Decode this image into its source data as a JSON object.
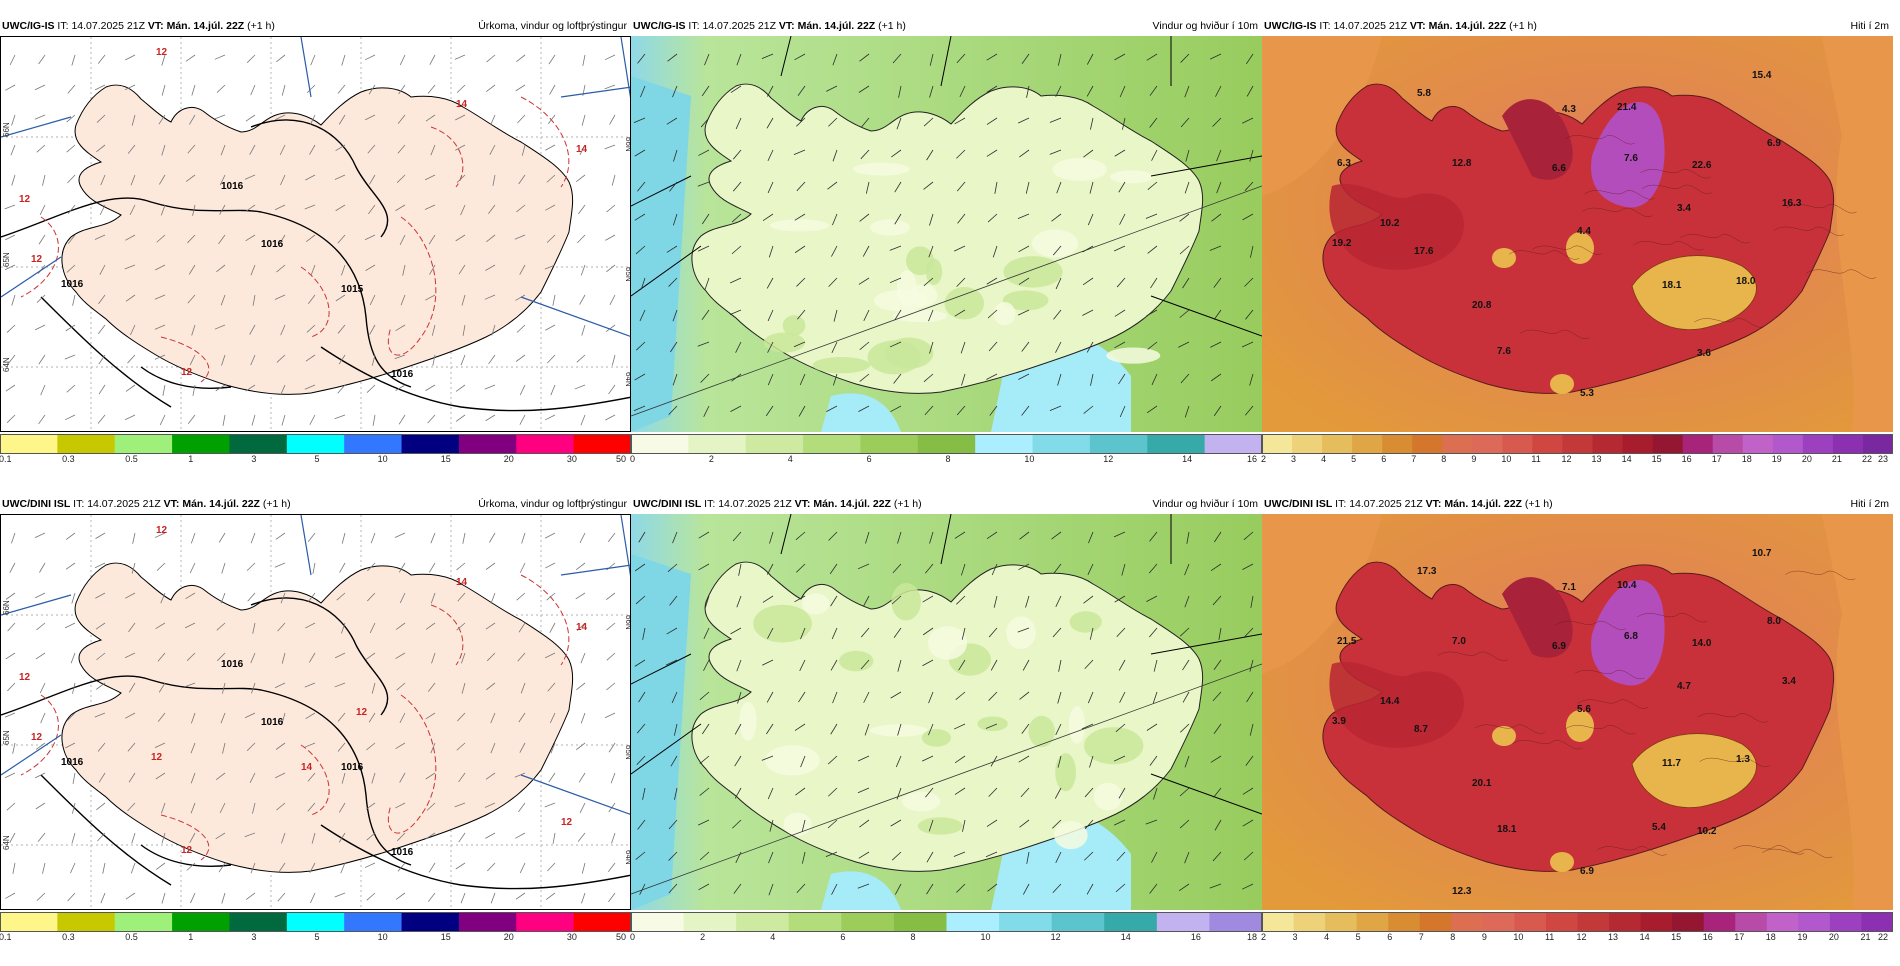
{
  "panels": {
    "igs_precip": {
      "model": "UWC/IG-IS",
      "it_label": "IT:",
      "it": "14.07.2025 21Z",
      "vt_label": "VT:",
      "vt": "Mán. 14.júl. 22Z",
      "lead": "(+1 h)",
      "title": "Úrkoma, vindur og loftþrýstingur",
      "colorbar": {
        "colors": [
          "#fff68a",
          "#c8c800",
          "#9ef07a",
          "#00a000",
          "#006a3e",
          "#00ffff",
          "#3377ff",
          "#000080",
          "#800080",
          "#ff0080",
          "#ff0000"
        ],
        "ticks": [
          "0.1",
          "0.3",
          "0.5",
          "1",
          "3",
          "5",
          "10",
          "15",
          "20",
          "30",
          "50"
        ]
      },
      "isobar_labels": [
        "1016",
        "1016",
        "1015",
        "1016",
        "1016"
      ],
      "precip_labels": [
        "12",
        "14",
        "14",
        "12",
        "12",
        "12"
      ],
      "lat_labels": [
        "66N",
        "65N",
        "64N"
      ]
    },
    "igs_wind": {
      "model": "UWC/IG-IS",
      "it_label": "IT:",
      "it": "14.07.2025 21Z",
      "vt_label": "VT:",
      "vt": "Mán. 14.júl. 22Z",
      "lead": "(+1 h)",
      "title": "Vindur og hviður í 10m",
      "colorbar": {
        "colors": [
          "#f7fbe6",
          "#e4f4c4",
          "#cdeaa0",
          "#b3dc7a",
          "#9ccc5a",
          "#86bd45",
          "#aaeeff",
          "#82dbe8",
          "#5cc4cc",
          "#35aaa8",
          "#c3b2f0"
        ],
        "ticks": [
          "0",
          "2",
          "4",
          "6",
          "8",
          "10",
          "12",
          "14",
          "16"
        ]
      }
    },
    "igs_temp": {
      "model": "UWC/IG-IS",
      "it_label": "IT:",
      "it": "14.07.2025 21Z",
      "vt_label": "VT:",
      "vt": "Mán. 14.júl. 22Z",
      "lead": "(+1 h)",
      "title": "Hiti í 2m",
      "colorbar": {
        "colors": [
          "#f5e79a",
          "#eed27a",
          "#e6bd5c",
          "#e0a544",
          "#d88d33",
          "#d4772c",
          "#dc6e52",
          "#dd6a58",
          "#d85a4e",
          "#cf4740",
          "#c33838",
          "#b52a32",
          "#a81d2e",
          "#951630",
          "#a8247a",
          "#b84aa8",
          "#c062c8",
          "#b058cc",
          "#9c40c0",
          "#8a30b0",
          "#7a28a0"
        ],
        "ticks": [
          "2",
          "3",
          "4",
          "5",
          "6",
          "7",
          "8",
          "9",
          "10",
          "11",
          "12",
          "13",
          "14",
          "15",
          "16",
          "17",
          "18",
          "19",
          "20",
          "21",
          "22",
          "23"
        ]
      },
      "values": [
        "5.8",
        "4.3",
        "21.4",
        "15.4",
        "6.3",
        "12.8",
        "6.6",
        "7.6",
        "22.6",
        "6.9",
        "10.2",
        "17.6",
        "4.4",
        "3.4",
        "16.3",
        "18.1",
        "20.8",
        "18.0",
        "19.2",
        "7.6",
        "5.3",
        "3.6"
      ]
    },
    "dini_precip": {
      "model": "UWC/DINI ISL",
      "it_label": "IT:",
      "it": "14.07.2025 21Z",
      "vt_label": "VT:",
      "vt": "Mán. 14.júl. 22Z",
      "lead": "(+1 h)",
      "title": "Úrkoma, vindur og loftþrýstingur",
      "colorbar": {
        "colors": [
          "#fff68a",
          "#c8c800",
          "#9ef07a",
          "#00a000",
          "#006a3e",
          "#00ffff",
          "#3377ff",
          "#000080",
          "#800080",
          "#ff0080",
          "#ff0000"
        ],
        "ticks": [
          "0.1",
          "0.3",
          "0.5",
          "1",
          "3",
          "5",
          "10",
          "15",
          "20",
          "30",
          "50"
        ]
      },
      "isobar_labels": [
        "1016",
        "1016",
        "1016",
        "1016",
        "1016"
      ],
      "precip_labels": [
        "12",
        "14",
        "14",
        "12",
        "12",
        "12",
        "12",
        "12",
        "14",
        "12"
      ],
      "lat_labels": [
        "66N",
        "65N",
        "64N"
      ]
    },
    "dini_wind": {
      "model": "UWC/DINI ISL",
      "it_label": "IT:",
      "it": "14.07.2025 21Z",
      "vt_label": "VT:",
      "vt": "Mán. 14.júl. 22Z",
      "lead": "(+1 h)",
      "title": "Vindur og hviður í 10m",
      "colorbar": {
        "colors": [
          "#f7fbe6",
          "#e4f4c4",
          "#cdeaa0",
          "#b3dc7a",
          "#9ccc5a",
          "#86bd45",
          "#aaeeff",
          "#82dbe8",
          "#5cc4cc",
          "#35aaa8",
          "#c3b2f0",
          "#9f8ae0"
        ],
        "ticks": [
          "0",
          "2",
          "4",
          "6",
          "8",
          "10",
          "12",
          "14",
          "16",
          "18"
        ]
      }
    },
    "dini_temp": {
      "model": "UWC/DINI ISL",
      "it_label": "IT:",
      "it": "14.07.2025 21Z",
      "vt_label": "VT:",
      "vt": "Mán. 14.júl. 22Z",
      "lead": "(+1 h)",
      "title": "Hiti í 2m",
      "colorbar": {
        "colors": [
          "#f5e79a",
          "#eed27a",
          "#e6bd5c",
          "#e0a544",
          "#d88d33",
          "#d4772c",
          "#dc6e52",
          "#dd6a58",
          "#d85a4e",
          "#cf4740",
          "#c33838",
          "#b52a32",
          "#a81d2e",
          "#951630",
          "#a8247a",
          "#b84aa8",
          "#c062c8",
          "#b058cc",
          "#9c40c0",
          "#8a30b0"
        ],
        "ticks": [
          "2",
          "3",
          "4",
          "5",
          "6",
          "7",
          "8",
          "9",
          "10",
          "11",
          "12",
          "13",
          "14",
          "15",
          "16",
          "17",
          "18",
          "19",
          "20",
          "21",
          "22"
        ]
      },
      "values": [
        "17.3",
        "7.1",
        "10.4",
        "10.7",
        "21.5",
        "7.0",
        "6.9",
        "6.8",
        "14.0",
        "8.0",
        "14.4",
        "8.7",
        "5.6",
        "4.7",
        "3.4",
        "11.7",
        "20.1",
        "1.3",
        "3.9",
        "18.1",
        "6.9",
        "10.2",
        "5.4",
        "12.3"
      ]
    }
  }
}
